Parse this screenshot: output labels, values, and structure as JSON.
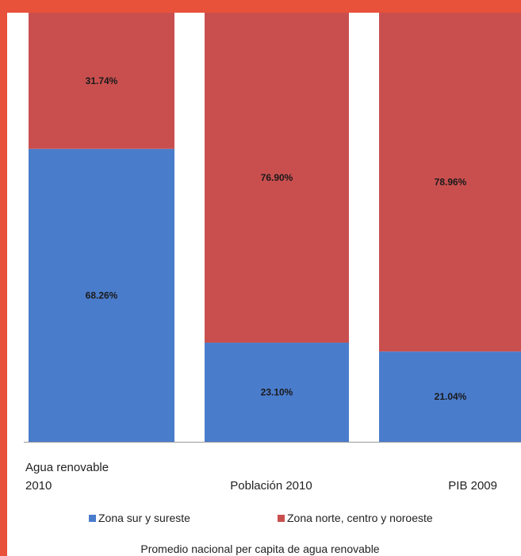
{
  "chart_data": {
    "type": "bar",
    "stacked": true,
    "percent_stacked": true,
    "categories": [
      "Agua renovable 2010",
      "Población 2010",
      "PIB 2009"
    ],
    "category_label_lines": [
      [
        "Agua renovable",
        "2010"
      ],
      [
        "Población 2010"
      ],
      [
        "PIB 2009"
      ]
    ],
    "series": [
      {
        "name": "Zona sur y sureste",
        "values": [
          68.26,
          23.1,
          21.04
        ],
        "labels": [
          "68.26%",
          "23.10%",
          "21.04%"
        ],
        "color": "#4a7ccc"
      },
      {
        "name": "Zona norte, centro y noroeste",
        "values": [
          31.74,
          76.9,
          78.96
        ],
        "labels": [
          "31.74%",
          "76.90%",
          "78.96%"
        ],
        "color": "#c94f4f"
      }
    ],
    "ylim": [
      0,
      100
    ],
    "grid": false,
    "legend_position": "bottom"
  },
  "footer_text": "Promedio nacional per capita de agua renovable",
  "colors": {
    "frame": "#e8513a",
    "axis": "#999999"
  }
}
